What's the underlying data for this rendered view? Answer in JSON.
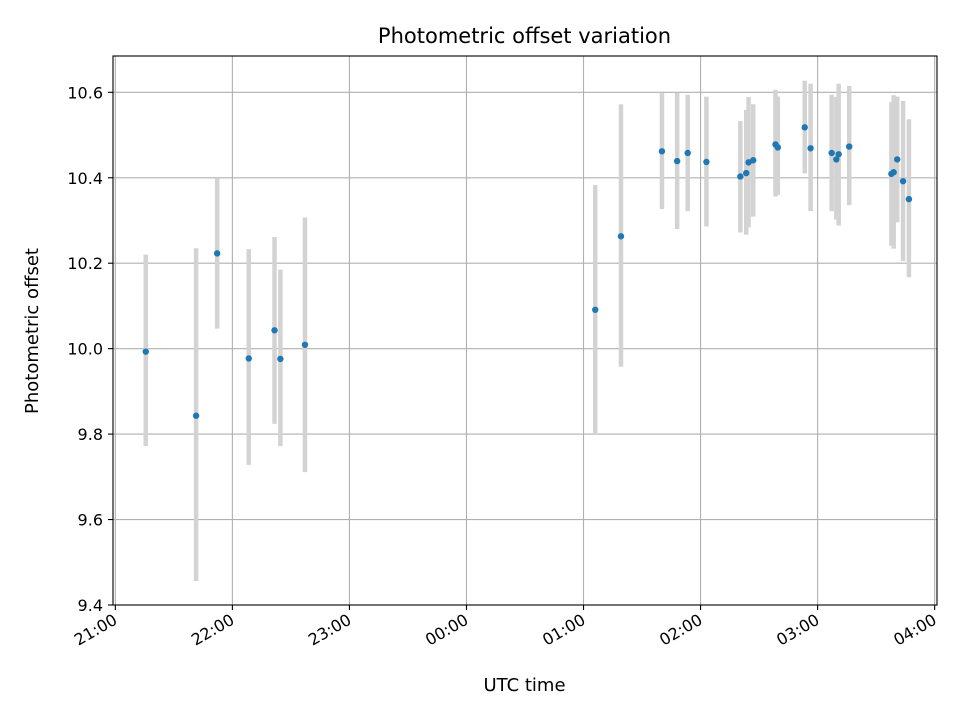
{
  "chart_data": {
    "type": "scatter",
    "title": "Photometric offset variation",
    "xlabel": "UTC time",
    "ylabel": "Photometric offset",
    "x_unit": "hours since 21:00 UTC",
    "xlim": [
      -0.02,
      7.02
    ],
    "ylim": [
      9.4,
      10.685
    ],
    "x_ticks": [
      {
        "value": 0,
        "label": "21:00"
      },
      {
        "value": 1,
        "label": "22:00"
      },
      {
        "value": 2,
        "label": "23:00"
      },
      {
        "value": 3,
        "label": "00:00"
      },
      {
        "value": 4,
        "label": "01:00"
      },
      {
        "value": 5,
        "label": "02:00"
      },
      {
        "value": 6,
        "label": "03:00"
      },
      {
        "value": 7,
        "label": "04:00"
      }
    ],
    "y_ticks": [
      {
        "value": 9.4,
        "label": "9.4"
      },
      {
        "value": 9.6,
        "label": "9.6"
      },
      {
        "value": 9.8,
        "label": "9.8"
      },
      {
        "value": 10.0,
        "label": "10.0"
      },
      {
        "value": 10.2,
        "label": "10.2"
      },
      {
        "value": 10.4,
        "label": "10.4"
      },
      {
        "value": 10.6,
        "label": "10.6"
      }
    ],
    "grid": true,
    "colors": {
      "point": "#1f77b4",
      "errorbar": "#d3d3d3",
      "grid": "#b0b0b0",
      "axes": "#000000"
    },
    "series": [
      {
        "points": [
          {
            "x": 0.26,
            "y": 9.993,
            "err_low": 9.772,
            "err_high": 10.22
          },
          {
            "x": 0.69,
            "y": 9.843,
            "err_low": 9.456,
            "err_high": 10.235
          },
          {
            "x": 0.87,
            "y": 10.223,
            "err_low": 10.047,
            "err_high": 10.398
          },
          {
            "x": 1.14,
            "y": 9.977,
            "err_low": 9.728,
            "err_high": 10.233
          },
          {
            "x": 1.36,
            "y": 10.043,
            "err_low": 9.824,
            "err_high": 10.261
          },
          {
            "x": 1.41,
            "y": 9.976,
            "err_low": 9.772,
            "err_high": 10.185
          },
          {
            "x": 1.62,
            "y": 10.009,
            "err_low": 9.711,
            "err_high": 10.307
          },
          {
            "x": 4.1,
            "y": 10.091,
            "err_low": 9.8,
            "err_high": 10.383
          },
          {
            "x": 4.32,
            "y": 10.263,
            "err_low": 9.958,
            "err_high": 10.572
          },
          {
            "x": 4.67,
            "y": 10.462,
            "err_low": 10.327,
            "err_high": 10.598
          },
          {
            "x": 4.8,
            "y": 10.439,
            "err_low": 10.28,
            "err_high": 10.598
          },
          {
            "x": 4.89,
            "y": 10.458,
            "err_low": 10.322,
            "err_high": 10.594
          },
          {
            "x": 5.05,
            "y": 10.437,
            "err_low": 10.286,
            "err_high": 10.59
          },
          {
            "x": 5.34,
            "y": 10.403,
            "err_low": 10.272,
            "err_high": 10.533
          },
          {
            "x": 5.39,
            "y": 10.411,
            "err_low": 10.267,
            "err_high": 10.559
          },
          {
            "x": 5.41,
            "y": 10.436,
            "err_low": 10.284,
            "err_high": 10.589
          },
          {
            "x": 5.45,
            "y": 10.441,
            "err_low": 10.309,
            "err_high": 10.572
          },
          {
            "x": 5.64,
            "y": 10.478,
            "err_low": 10.356,
            "err_high": 10.606
          },
          {
            "x": 5.66,
            "y": 10.471,
            "err_low": 10.36,
            "err_high": 10.59
          },
          {
            "x": 5.89,
            "y": 10.518,
            "err_low": 10.41,
            "err_high": 10.627
          },
          {
            "x": 5.94,
            "y": 10.469,
            "err_low": 10.322,
            "err_high": 10.62
          },
          {
            "x": 6.12,
            "y": 10.458,
            "err_low": 10.322,
            "err_high": 10.594
          },
          {
            "x": 6.16,
            "y": 10.443,
            "err_low": 10.302,
            "err_high": 10.589
          },
          {
            "x": 6.18,
            "y": 10.455,
            "err_low": 10.288,
            "err_high": 10.62
          },
          {
            "x": 6.27,
            "y": 10.473,
            "err_low": 10.336,
            "err_high": 10.615
          },
          {
            "x": 6.63,
            "y": 10.409,
            "err_low": 10.241,
            "err_high": 10.577
          },
          {
            "x": 6.65,
            "y": 10.413,
            "err_low": 10.234,
            "err_high": 10.593
          },
          {
            "x": 6.68,
            "y": 10.443,
            "err_low": 10.296,
            "err_high": 10.59
          },
          {
            "x": 6.73,
            "y": 10.392,
            "err_low": 10.205,
            "err_high": 10.58
          },
          {
            "x": 6.78,
            "y": 10.35,
            "err_low": 10.167,
            "err_high": 10.537
          }
        ]
      }
    ]
  }
}
